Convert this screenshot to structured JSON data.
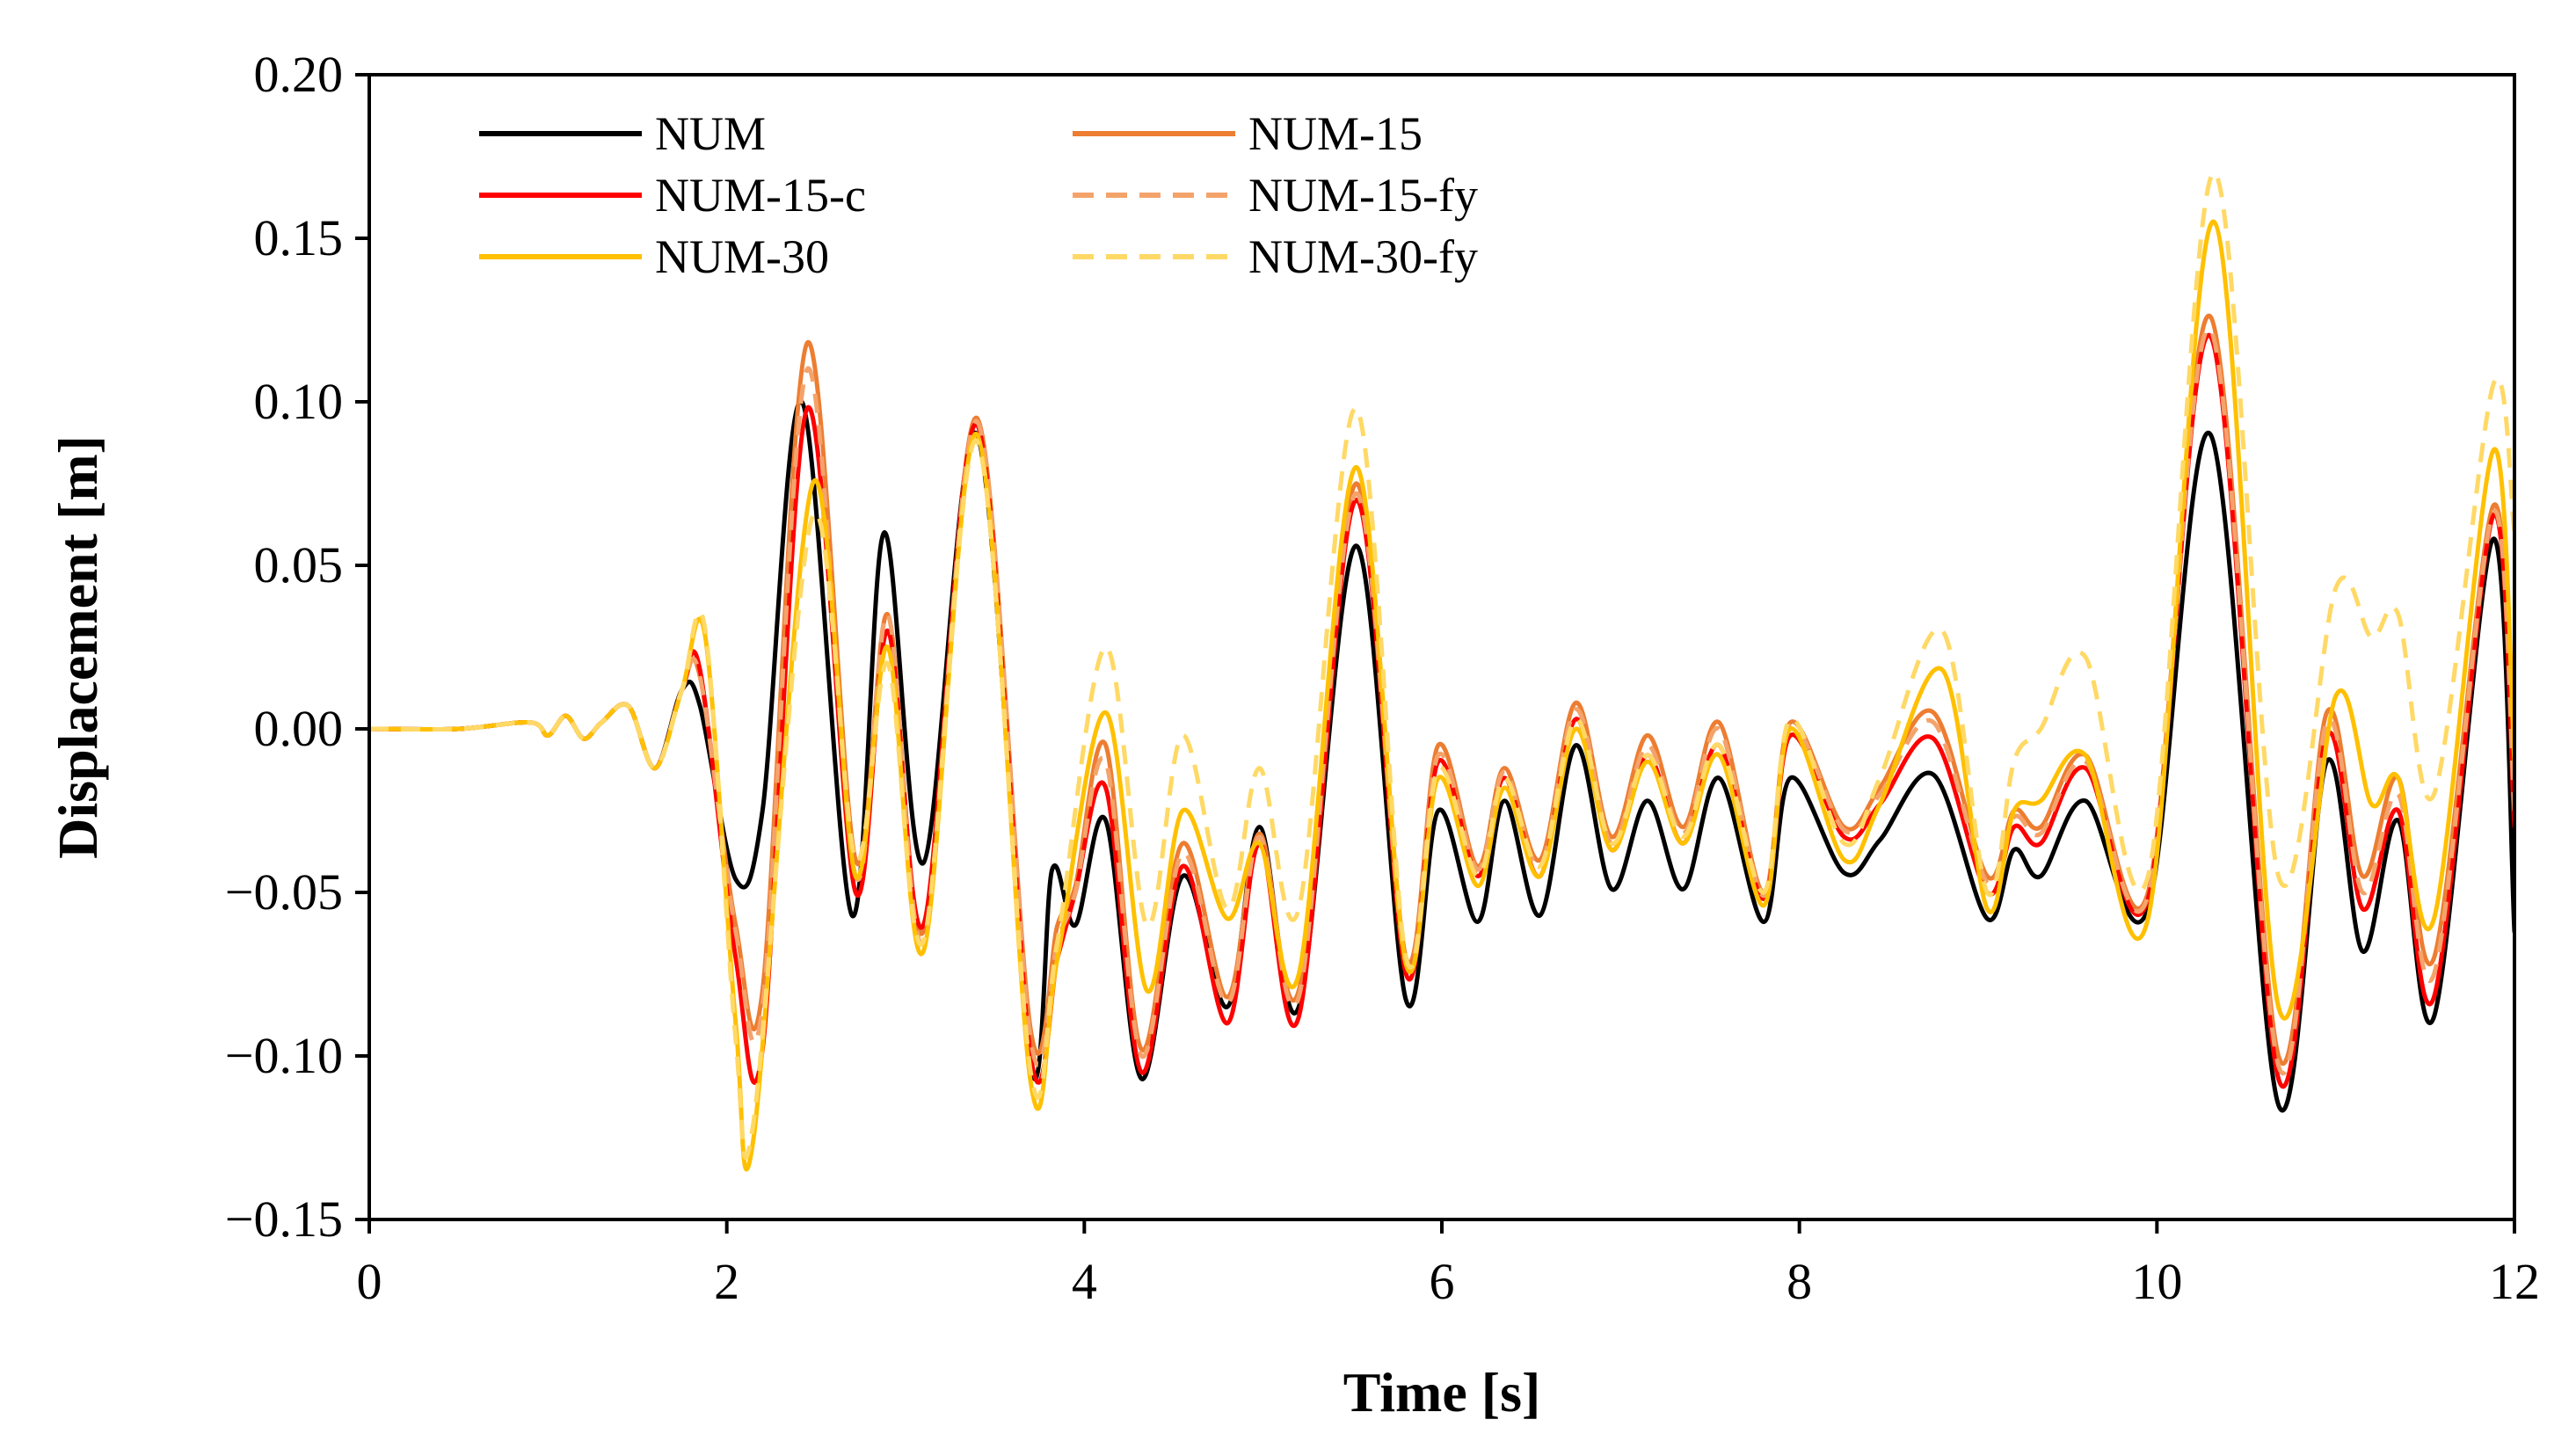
{
  "chart_data": {
    "type": "line",
    "title": "",
    "xlabel": "Time [s]",
    "ylabel": "Displacement [m]",
    "xlim": [
      0,
      12
    ],
    "ylim": [
      -0.15,
      0.2
    ],
    "x_ticks": [
      0,
      2,
      4,
      6,
      8,
      10,
      12
    ],
    "x_tick_labels": [
      "0",
      "2",
      "4",
      "6",
      "8",
      "10",
      "12"
    ],
    "y_ticks": [
      -0.15,
      -0.1,
      -0.05,
      0.0,
      0.05,
      0.1,
      0.15,
      0.2
    ],
    "y_tick_labels": [
      "−0.15",
      "−0.10",
      "−0.05",
      "0.00",
      "0.05",
      "0.10",
      "0.15",
      "0.20"
    ],
    "grid": false,
    "legend_position": "top-left",
    "series": [
      {
        "name": "NUM",
        "color": "#000000",
        "dash": "solid",
        "x": [
          0,
          0.5,
          0.9,
          1.0,
          1.1,
          1.2,
          1.3,
          1.45,
          1.6,
          1.75,
          1.85,
          2.05,
          2.2,
          2.42,
          2.7,
          2.88,
          3.1,
          3.4,
          3.7,
          3.82,
          3.95,
          4.12,
          4.32,
          4.55,
          4.8,
          4.98,
          5.2,
          5.52,
          5.8,
          5.98,
          6.2,
          6.35,
          6.55,
          6.75,
          6.95,
          7.15,
          7.35,
          7.55,
          7.8,
          7.95,
          8.25,
          8.45,
          8.75,
          9.05,
          9.2,
          9.35,
          9.6,
          9.95,
          10.3,
          10.68,
          10.95,
          11.15,
          11.35,
          11.55,
          11.88,
          12.0
        ],
        "y": [
          0,
          0,
          0.002,
          -0.002,
          0.004,
          -0.003,
          0.002,
          0.007,
          -0.012,
          0.012,
          0.007,
          -0.046,
          -0.025,
          0.1,
          -0.057,
          0.06,
          -0.041,
          0.09,
          -0.103,
          -0.043,
          -0.06,
          -0.028,
          -0.107,
          -0.045,
          -0.085,
          -0.03,
          -0.085,
          0.056,
          -0.083,
          -0.025,
          -0.059,
          -0.022,
          -0.057,
          -0.005,
          -0.049,
          -0.022,
          -0.049,
          -0.015,
          -0.059,
          -0.015,
          -0.044,
          -0.034,
          -0.014,
          -0.058,
          -0.037,
          -0.045,
          -0.022,
          -0.055,
          0.09,
          -0.115,
          -0.01,
          -0.068,
          -0.028,
          -0.088,
          0.058,
          -0.062
        ]
      },
      {
        "name": "NUM-15",
        "color": "#ED7D31",
        "dash": "solid",
        "x": [
          0,
          0.5,
          0.9,
          1.0,
          1.1,
          1.2,
          1.3,
          1.45,
          1.6,
          1.75,
          1.85,
          2.05,
          2.2,
          2.45,
          2.72,
          2.9,
          3.1,
          3.4,
          3.7,
          3.85,
          3.95,
          4.12,
          4.32,
          4.55,
          4.8,
          4.98,
          5.2,
          5.52,
          5.8,
          5.98,
          6.2,
          6.35,
          6.55,
          6.75,
          6.95,
          7.15,
          7.35,
          7.55,
          7.8,
          7.95,
          8.25,
          8.45,
          8.75,
          9.05,
          9.2,
          9.35,
          9.6,
          9.95,
          10.3,
          10.68,
          10.95,
          11.15,
          11.35,
          11.55,
          11.88,
          12.0
        ],
        "y": [
          0,
          0,
          0.002,
          -0.002,
          0.004,
          -0.003,
          0.002,
          0.007,
          -0.012,
          0.012,
          0.016,
          -0.06,
          -0.08,
          0.118,
          -0.04,
          0.035,
          -0.062,
          0.095,
          -0.092,
          -0.06,
          -0.048,
          -0.005,
          -0.098,
          -0.035,
          -0.082,
          -0.032,
          -0.08,
          0.075,
          -0.07,
          -0.005,
          -0.042,
          -0.012,
          -0.04,
          0.008,
          -0.033,
          -0.002,
          -0.03,
          0.002,
          -0.05,
          0.002,
          -0.03,
          -0.018,
          0.005,
          -0.045,
          -0.025,
          -0.03,
          -0.008,
          -0.05,
          0.126,
          -0.1,
          0.005,
          -0.045,
          -0.015,
          -0.07,
          0.068,
          -0.02
        ]
      },
      {
        "name": "NUM-15-c",
        "color": "#FF0000",
        "dash": "solid",
        "x": [
          0,
          0.5,
          0.9,
          1.0,
          1.1,
          1.2,
          1.3,
          1.45,
          1.6,
          1.75,
          1.85,
          2.05,
          2.2,
          2.45,
          2.72,
          2.9,
          3.1,
          3.4,
          3.7,
          3.85,
          3.95,
          4.12,
          4.32,
          4.55,
          4.8,
          4.98,
          5.2,
          5.52,
          5.8,
          5.98,
          6.2,
          6.35,
          6.55,
          6.75,
          6.95,
          7.15,
          7.35,
          7.55,
          7.8,
          7.95,
          8.25,
          8.45,
          8.75,
          9.05,
          9.2,
          9.35,
          9.6,
          9.95,
          10.3,
          10.68,
          10.95,
          11.15,
          11.35,
          11.55,
          11.88,
          12.0
        ],
        "y": [
          0,
          0,
          0.002,
          -0.002,
          0.004,
          -0.003,
          0.002,
          0.007,
          -0.012,
          0.012,
          0.018,
          -0.07,
          -0.098,
          0.098,
          -0.05,
          0.03,
          -0.06,
          0.093,
          -0.1,
          -0.07,
          -0.05,
          -0.018,
          -0.105,
          -0.042,
          -0.09,
          -0.035,
          -0.088,
          0.07,
          -0.075,
          -0.01,
          -0.045,
          -0.015,
          -0.045,
          0.003,
          -0.037,
          -0.008,
          -0.035,
          -0.005,
          -0.052,
          -0.002,
          -0.033,
          -0.023,
          -0.003,
          -0.05,
          -0.03,
          -0.035,
          -0.012,
          -0.052,
          0.12,
          -0.107,
          -0.002,
          -0.055,
          -0.025,
          -0.082,
          0.065,
          -0.03
        ]
      },
      {
        "name": "NUM-15-fy",
        "color": "#F4A36B",
        "dash": "dashed",
        "x": [
          0,
          0.5,
          0.9,
          1.0,
          1.1,
          1.2,
          1.3,
          1.45,
          1.6,
          1.75,
          1.85,
          2.05,
          2.2,
          2.45,
          2.72,
          2.9,
          3.1,
          3.4,
          3.7,
          3.85,
          3.95,
          4.12,
          4.32,
          4.55,
          4.8,
          4.98,
          5.2,
          5.52,
          5.8,
          5.98,
          6.2,
          6.35,
          6.55,
          6.75,
          6.95,
          7.15,
          7.35,
          7.55,
          7.8,
          7.95,
          8.25,
          8.45,
          8.75,
          9.05,
          9.2,
          9.35,
          9.6,
          9.95,
          10.3,
          10.68,
          10.95,
          11.15,
          11.35,
          11.55,
          11.88,
          12.0
        ],
        "y": [
          0,
          0,
          0.002,
          -0.002,
          0.004,
          -0.003,
          0.002,
          0.007,
          -0.012,
          0.012,
          0.016,
          -0.062,
          -0.085,
          0.11,
          -0.045,
          0.035,
          -0.065,
          0.094,
          -0.095,
          -0.065,
          -0.05,
          -0.01,
          -0.1,
          -0.038,
          -0.084,
          -0.033,
          -0.082,
          0.072,
          -0.072,
          -0.008,
          -0.043,
          -0.013,
          -0.042,
          0.006,
          -0.035,
          -0.005,
          -0.032,
          0.0,
          -0.051,
          0.001,
          -0.031,
          -0.02,
          0.002,
          -0.047,
          -0.027,
          -0.032,
          -0.01,
          -0.051,
          0.122,
          -0.103,
          0.002,
          -0.05,
          -0.02,
          -0.075,
          0.066,
          -0.025
        ]
      },
      {
        "name": "NUM-30",
        "color": "#FFC000",
        "dash": "solid",
        "x": [
          0,
          0.5,
          0.9,
          1.0,
          1.1,
          1.2,
          1.3,
          1.45,
          1.6,
          1.75,
          1.88,
          2.05,
          2.15,
          2.48,
          2.72,
          2.9,
          3.1,
          3.4,
          3.7,
          3.85,
          4.12,
          4.35,
          4.55,
          4.8,
          4.98,
          5.2,
          5.52,
          5.8,
          5.98,
          6.2,
          6.35,
          6.55,
          6.75,
          6.95,
          7.15,
          7.35,
          7.55,
          7.8,
          7.95,
          8.25,
          8.45,
          8.8,
          9.05,
          9.2,
          9.35,
          9.6,
          9.95,
          10.32,
          10.68,
          11.0,
          11.2,
          11.35,
          11.55,
          11.88,
          12.0
        ],
        "y": [
          0,
          0,
          0.002,
          -0.002,
          0.004,
          -0.003,
          0.002,
          0.007,
          -0.012,
          0.012,
          0.028,
          -0.09,
          -0.125,
          0.075,
          -0.045,
          0.025,
          -0.068,
          0.09,
          -0.108,
          -0.07,
          0.005,
          -0.08,
          -0.025,
          -0.058,
          -0.035,
          -0.075,
          0.08,
          -0.072,
          -0.015,
          -0.048,
          -0.018,
          -0.045,
          0.0,
          -0.037,
          -0.01,
          -0.035,
          -0.008,
          -0.054,
          0.0,
          -0.04,
          -0.023,
          0.018,
          -0.055,
          -0.025,
          -0.022,
          -0.008,
          -0.058,
          0.155,
          -0.085,
          0.01,
          -0.023,
          -0.015,
          -0.058,
          0.085,
          -0.01
        ]
      },
      {
        "name": "NUM-30-fy",
        "color": "#FFD966",
        "dash": "dashed",
        "x": [
          0,
          0.5,
          0.9,
          1.0,
          1.1,
          1.2,
          1.3,
          1.45,
          1.6,
          1.75,
          1.88,
          2.05,
          2.15,
          2.48,
          2.72,
          2.9,
          3.1,
          3.4,
          3.7,
          3.85,
          4.12,
          4.35,
          4.55,
          4.8,
          4.98,
          5.2,
          5.52,
          5.8,
          5.98,
          6.2,
          6.35,
          6.55,
          6.75,
          6.95,
          7.15,
          7.35,
          7.55,
          7.8,
          7.95,
          8.25,
          8.45,
          8.8,
          9.05,
          9.2,
          9.35,
          9.6,
          9.95,
          10.32,
          10.68,
          11.0,
          11.2,
          11.35,
          11.55,
          11.88,
          12.0
        ],
        "y": [
          0,
          0,
          0.002,
          -0.002,
          0.004,
          -0.003,
          0.002,
          0.007,
          -0.012,
          0.012,
          0.03,
          -0.095,
          -0.12,
          0.065,
          -0.04,
          0.02,
          -0.065,
          0.088,
          -0.105,
          -0.065,
          0.025,
          -0.06,
          -0.002,
          -0.055,
          -0.012,
          -0.055,
          0.098,
          -0.07,
          -0.012,
          -0.045,
          -0.015,
          -0.042,
          0.003,
          -0.035,
          -0.008,
          -0.033,
          -0.005,
          -0.05,
          0.003,
          -0.035,
          -0.015,
          0.03,
          -0.05,
          -0.01,
          0.0,
          0.022,
          -0.045,
          0.17,
          -0.045,
          0.043,
          0.028,
          0.035,
          -0.02,
          0.105,
          0.06
        ]
      }
    ]
  },
  "legend": [
    {
      "name": "NUM",
      "color": "#000000",
      "dash": "solid"
    },
    {
      "name": "NUM-15",
      "color": "#ED7D31",
      "dash": "solid"
    },
    {
      "name": "NUM-15-c",
      "color": "#FF0000",
      "dash": "solid"
    },
    {
      "name": "NUM-15-fy",
      "color": "#F4A36B",
      "dash": "dashed"
    },
    {
      "name": "NUM-30",
      "color": "#FFC000",
      "dash": "solid"
    },
    {
      "name": "NUM-30-fy",
      "color": "#FFD966",
      "dash": "dashed"
    }
  ]
}
